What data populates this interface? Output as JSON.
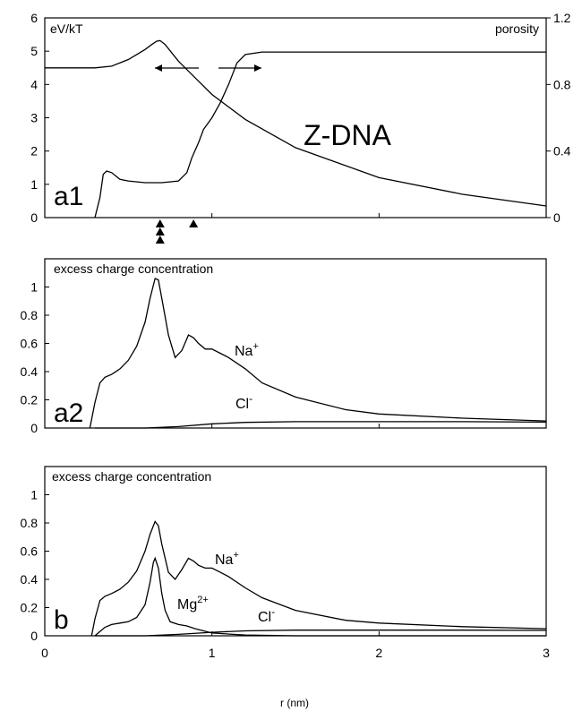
{
  "figure": {
    "xlabel": "r (nm)",
    "xticks": [
      "0",
      "1",
      "2",
      "3"
    ]
  },
  "chart_data": [
    {
      "type": "line",
      "panel": "a1",
      "panel_label": "a1",
      "annotation": "Z-DNA",
      "ylabel_left": "eV/kT",
      "ylabel_right": "porosity",
      "xlim": [
        0,
        3
      ],
      "ylim_left": [
        0,
        6
      ],
      "ylim_right": [
        0,
        1.2
      ],
      "yticks_left": [
        "0",
        "1",
        "2",
        "3",
        "4",
        "5",
        "6"
      ],
      "yticks_right": [
        "0",
        "0.4",
        "0.8",
        "1.2"
      ],
      "markers": {
        "triangles_at_x": [
          0.69,
          0.69,
          0.69,
          0.89
        ]
      },
      "series": [
        {
          "axis": "left",
          "x": [
            0,
            0.3,
            0.4,
            0.5,
            0.6,
            0.64,
            0.67,
            0.69,
            0.72,
            0.8,
            0.9,
            1.0,
            1.2,
            1.5,
            2.0,
            2.5,
            3.0
          ],
          "y": [
            4.5,
            4.5,
            4.55,
            4.75,
            5.05,
            5.2,
            5.3,
            5.32,
            5.2,
            4.7,
            4.2,
            3.7,
            2.95,
            2.1,
            1.2,
            0.7,
            0.35
          ]
        },
        {
          "axis": "right",
          "x": [
            0.3,
            0.33,
            0.35,
            0.37,
            0.4,
            0.45,
            0.5,
            0.6,
            0.7,
            0.8,
            0.85,
            0.88,
            0.92,
            0.95,
            1.0,
            1.05,
            1.1,
            1.15,
            1.2,
            1.3,
            1.5,
            2.0,
            3.0
          ],
          "y": [
            0.0,
            0.12,
            0.26,
            0.28,
            0.27,
            0.23,
            0.22,
            0.21,
            0.21,
            0.22,
            0.27,
            0.36,
            0.45,
            0.53,
            0.6,
            0.69,
            0.8,
            0.93,
            0.98,
            0.995,
            0.995,
            0.995,
            0.995
          ]
        }
      ]
    },
    {
      "type": "line",
      "panel": "a2",
      "panel_label": "a2",
      "title": "excess charge concentration",
      "xlim": [
        0,
        3
      ],
      "ylim": [
        0,
        1.2
      ],
      "yticks": [
        "0",
        "0.2",
        "0.4",
        "0.6",
        "0.8",
        "1"
      ],
      "series": [
        {
          "name": "Na+",
          "label_text": "Na",
          "label_sup": "+",
          "x": [
            0.27,
            0.3,
            0.33,
            0.36,
            0.4,
            0.45,
            0.5,
            0.55,
            0.6,
            0.63,
            0.66,
            0.68,
            0.7,
            0.74,
            0.78,
            0.82,
            0.86,
            0.89,
            0.92,
            0.96,
            1.0,
            1.05,
            1.1,
            1.2,
            1.3,
            1.5,
            1.8,
            2.0,
            2.5,
            3.0
          ],
          "y": [
            0.0,
            0.18,
            0.32,
            0.36,
            0.38,
            0.42,
            0.48,
            0.58,
            0.75,
            0.92,
            1.06,
            1.05,
            0.92,
            0.66,
            0.5,
            0.55,
            0.66,
            0.64,
            0.6,
            0.56,
            0.56,
            0.53,
            0.5,
            0.42,
            0.32,
            0.22,
            0.13,
            0.1,
            0.07,
            0.05
          ]
        },
        {
          "name": "Cl-",
          "label_text": "Cl",
          "label_sup": "-",
          "x": [
            0.3,
            0.6,
            0.8,
            1.0,
            1.2,
            1.5,
            2.0,
            2.5,
            3.0
          ],
          "y": [
            0.0,
            0.0,
            0.01,
            0.03,
            0.04,
            0.045,
            0.045,
            0.045,
            0.042
          ]
        }
      ]
    },
    {
      "type": "line",
      "panel": "b",
      "panel_label": "b",
      "title": "excess charge concentration",
      "xlim": [
        0,
        3
      ],
      "ylim": [
        0,
        1.2
      ],
      "yticks": [
        "0",
        "0.2",
        "0.4",
        "0.6",
        "0.8",
        "1"
      ],
      "series": [
        {
          "name": "Na+",
          "label_text": "Na",
          "label_sup": "+",
          "x": [
            0.28,
            0.3,
            0.33,
            0.36,
            0.4,
            0.45,
            0.5,
            0.55,
            0.6,
            0.63,
            0.66,
            0.68,
            0.7,
            0.74,
            0.78,
            0.82,
            0.86,
            0.89,
            0.92,
            0.96,
            1.0,
            1.05,
            1.1,
            1.2,
            1.3,
            1.5,
            1.8,
            2.0,
            2.5,
            3.0
          ],
          "y": [
            0.0,
            0.12,
            0.25,
            0.28,
            0.3,
            0.33,
            0.38,
            0.46,
            0.6,
            0.72,
            0.81,
            0.78,
            0.65,
            0.45,
            0.4,
            0.47,
            0.55,
            0.53,
            0.5,
            0.48,
            0.48,
            0.45,
            0.42,
            0.34,
            0.27,
            0.18,
            0.11,
            0.09,
            0.065,
            0.05
          ]
        },
        {
          "name": "Mg2+",
          "label_text": "Mg",
          "label_sup": "2+",
          "x": [
            0.3,
            0.33,
            0.36,
            0.4,
            0.45,
            0.5,
            0.55,
            0.6,
            0.63,
            0.65,
            0.66,
            0.68,
            0.7,
            0.72,
            0.75,
            0.8,
            0.85,
            0.9,
            1.0,
            1.2,
            1.5,
            3.0
          ],
          "y": [
            0.0,
            0.03,
            0.06,
            0.08,
            0.09,
            0.1,
            0.13,
            0.22,
            0.38,
            0.52,
            0.55,
            0.48,
            0.3,
            0.18,
            0.1,
            0.08,
            0.07,
            0.05,
            0.02,
            0.005,
            0.0,
            0.0
          ]
        },
        {
          "name": "Cl-",
          "label_text": "Cl",
          "label_sup": "-",
          "x": [
            0.3,
            0.6,
            0.8,
            1.0,
            1.2,
            1.5,
            2.0,
            2.5,
            3.0
          ],
          "y": [
            0.0,
            0.0,
            0.01,
            0.025,
            0.035,
            0.04,
            0.04,
            0.04,
            0.038
          ]
        }
      ]
    }
  ]
}
